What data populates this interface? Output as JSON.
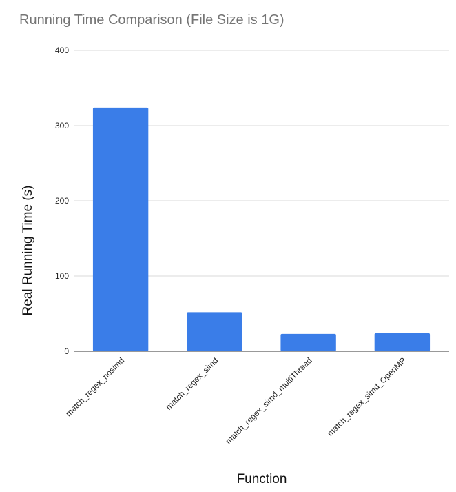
{
  "chart_data": {
    "type": "bar",
    "title": "Running Time Comparison (File Size is 1G)",
    "xlabel": "Function",
    "ylabel": "Real Running Time (s)",
    "categories": [
      "match_regex_nosimd",
      "match_regex_simd",
      "match_regex_simd_multiThread",
      "match_regex_simd_OpenMP"
    ],
    "values": [
      324,
      52,
      23,
      24
    ],
    "ylim": [
      0,
      400
    ],
    "yticks": [
      0,
      100,
      200,
      300,
      400
    ],
    "grid": true,
    "legend": "none",
    "bar_color": "#3a7de8"
  }
}
